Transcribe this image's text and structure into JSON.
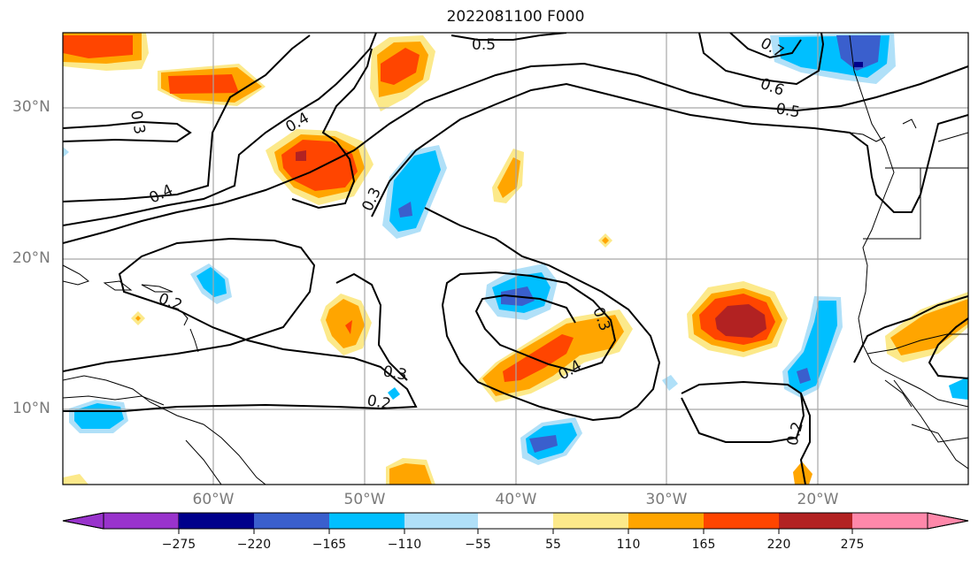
{
  "title": "2022081100 F000",
  "lat_labels": [
    "30°N",
    "20°N",
    "10°N"
  ],
  "lon_labels": [
    "60°W",
    "50°W",
    "40°W",
    "30°W",
    "20°W"
  ],
  "colorbar": {
    "ticks": [
      "−275",
      "−220",
      "−165",
      "−110",
      "−55",
      "55",
      "110",
      "165",
      "220",
      "275"
    ],
    "colors": [
      "#9933cc",
      "#00008b",
      "#3a5fcd",
      "#00bfff",
      "#b0e0f8",
      "#ffffff",
      "#fce98a",
      "#ffa500",
      "#ff4500",
      "#b22222",
      "#ff88aa"
    ]
  },
  "contour_labels": [
    "0.5",
    "0.7",
    "0.6",
    "0.5",
    "0.3",
    "0.4",
    "0.4",
    "0.3",
    "0.2",
    "0.3",
    "0.2",
    "0.3",
    "0.4",
    "0.2"
  ]
}
